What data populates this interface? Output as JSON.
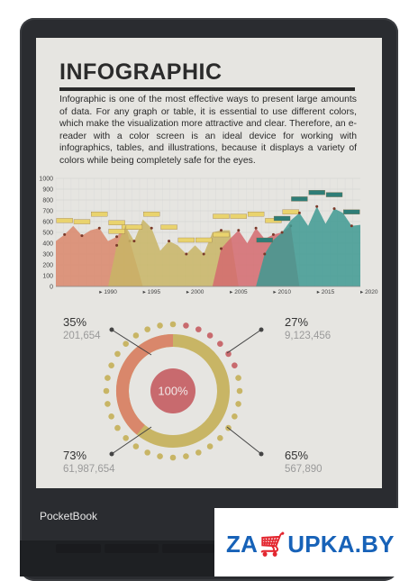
{
  "device": {
    "brand": "PocketBook"
  },
  "screen": {
    "title": "INFOGRAPHIC",
    "paragraph": "Infographic is one of the most effective ways to present large amounts of data. For any graph or table, it is essential to use different colors, which make the visualization more attractive and clear. Therefore, an e-reader with a color screen is an ideal device for working with infographics, tables, and illustrations, because it displays a variety of colors while being completely safe for the eyes."
  },
  "shop": {
    "logo_pre": "ZA",
    "logo_post": "UPKA.BY",
    "colors": {
      "blue": "#1762b8",
      "red": "#e3262f"
    }
  },
  "chart_data": [
    {
      "type": "area",
      "y_ticks": [
        0,
        100,
        200,
        300,
        400,
        500,
        600,
        700,
        800,
        900,
        1000
      ],
      "ylim": [
        0,
        1000
      ],
      "x_ticks": [
        "1990",
        "1995",
        "2000",
        "2005",
        "2010",
        "2015",
        "2020"
      ],
      "xlim": [
        1985,
        2020
      ],
      "grid": true,
      "series": [
        {
          "color": "#d9876b",
          "x": [
            1985,
            1986,
            1987,
            1988,
            1989,
            1990,
            1991,
            1992,
            1993,
            1993.5,
            1995
          ],
          "y": [
            420,
            480,
            560,
            470,
            520,
            540,
            420,
            460,
            560,
            420,
            0
          ]
        },
        {
          "color": "#c8b565",
          "x": [
            1991,
            1992,
            1993,
            1994,
            1995,
            1996,
            1997,
            1998,
            1999,
            2000,
            2001,
            2002,
            2003,
            2004,
            2005,
            2006
          ],
          "y": [
            0,
            380,
            560,
            420,
            620,
            540,
            330,
            420,
            380,
            300,
            380,
            300,
            500,
            520,
            520,
            0
          ]
        },
        {
          "color": "#d46a6f",
          "x": [
            2003,
            2004,
            2005,
            2006,
            2007,
            2008,
            2009,
            2010,
            2011,
            2012,
            2013
          ],
          "y": [
            0,
            350,
            440,
            520,
            400,
            540,
            440,
            480,
            500,
            560,
            0
          ]
        },
        {
          "color": "#3e9a92",
          "x": [
            2008,
            2009,
            2010,
            2011,
            2012,
            2013,
            2014,
            2015,
            2016,
            2017,
            2018,
            2019,
            2020
          ],
          "y": [
            0,
            300,
            430,
            500,
            610,
            680,
            560,
            740,
            580,
            720,
            680,
            560,
            570
          ]
        }
      ]
    },
    {
      "type": "pie",
      "center_label": "100%",
      "stats": [
        {
          "percent": "35%",
          "value": "201,654"
        },
        {
          "percent": "27%",
          "value": "9,123,456"
        },
        {
          "percent": "73%",
          "value": "61,987,654"
        },
        {
          "percent": "65%",
          "value": "567,890"
        }
      ],
      "ring_colors": {
        "olive": "#c8b565",
        "salmon": "#d9876b",
        "rose": "#c86a6e",
        "teal": "#3e9a92"
      }
    }
  ]
}
